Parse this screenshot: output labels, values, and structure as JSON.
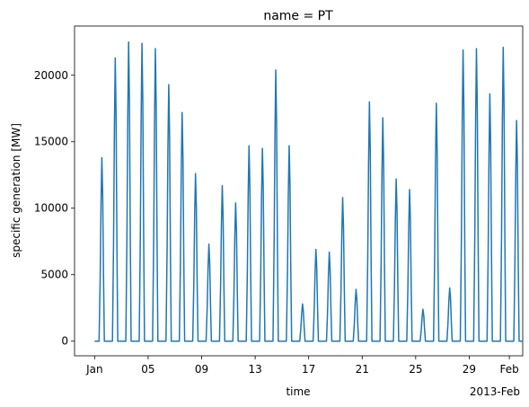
{
  "chart_data": {
    "type": "line",
    "title": "name = PT",
    "xlabel": "time",
    "ylabel": "specific generation [MW]",
    "x_offset_label": "2013-Feb",
    "xlim": [
      "2012-12-30T12:00",
      "2013-02-02T00:00"
    ],
    "ylim": [
      -1100,
      23700
    ],
    "x_tick_labels": [
      "Jan",
      "05",
      "09",
      "13",
      "17",
      "21",
      "25",
      "29",
      "Feb"
    ],
    "x_tick_dates": [
      "2013-01-01",
      "2013-01-05",
      "2013-01-09",
      "2013-01-13",
      "2013-01-17",
      "2013-01-21",
      "2013-01-25",
      "2013-01-29",
      "2013-02-01"
    ],
    "y_ticks": [
      0,
      5000,
      10000,
      15000,
      20000
    ],
    "y_tick_labels": [
      "0",
      "5000",
      "10000",
      "15000",
      "20000"
    ],
    "grid": false,
    "line_color": "#1f77b4",
    "series": [
      {
        "daily_dates": [
          "2013-01-01",
          "2013-01-02",
          "2013-01-03",
          "2013-01-04",
          "2013-01-05",
          "2013-01-06",
          "2013-01-07",
          "2013-01-08",
          "2013-01-09",
          "2013-01-10",
          "2013-01-11",
          "2013-01-12",
          "2013-01-13",
          "2013-01-14",
          "2013-01-15",
          "2013-01-16",
          "2013-01-17",
          "2013-01-18",
          "2013-01-19",
          "2013-01-20",
          "2013-01-21",
          "2013-01-22",
          "2013-01-23",
          "2013-01-24",
          "2013-01-25",
          "2013-01-26",
          "2013-01-27",
          "2013-01-28",
          "2013-01-29",
          "2013-01-30",
          "2013-01-31",
          "2013-02-01"
        ],
        "daily_peak": [
          13800,
          21300,
          22500,
          22400,
          22000,
          19300,
          17200,
          12600,
          7300,
          11700,
          10400,
          14700,
          14500,
          20400,
          14700,
          2800,
          6900,
          6700,
          10800,
          3900,
          18000,
          16800,
          12200,
          11400,
          2400,
          17900,
          4000,
          21900,
          22000,
          18600,
          22100,
          16600
        ]
      }
    ]
  }
}
